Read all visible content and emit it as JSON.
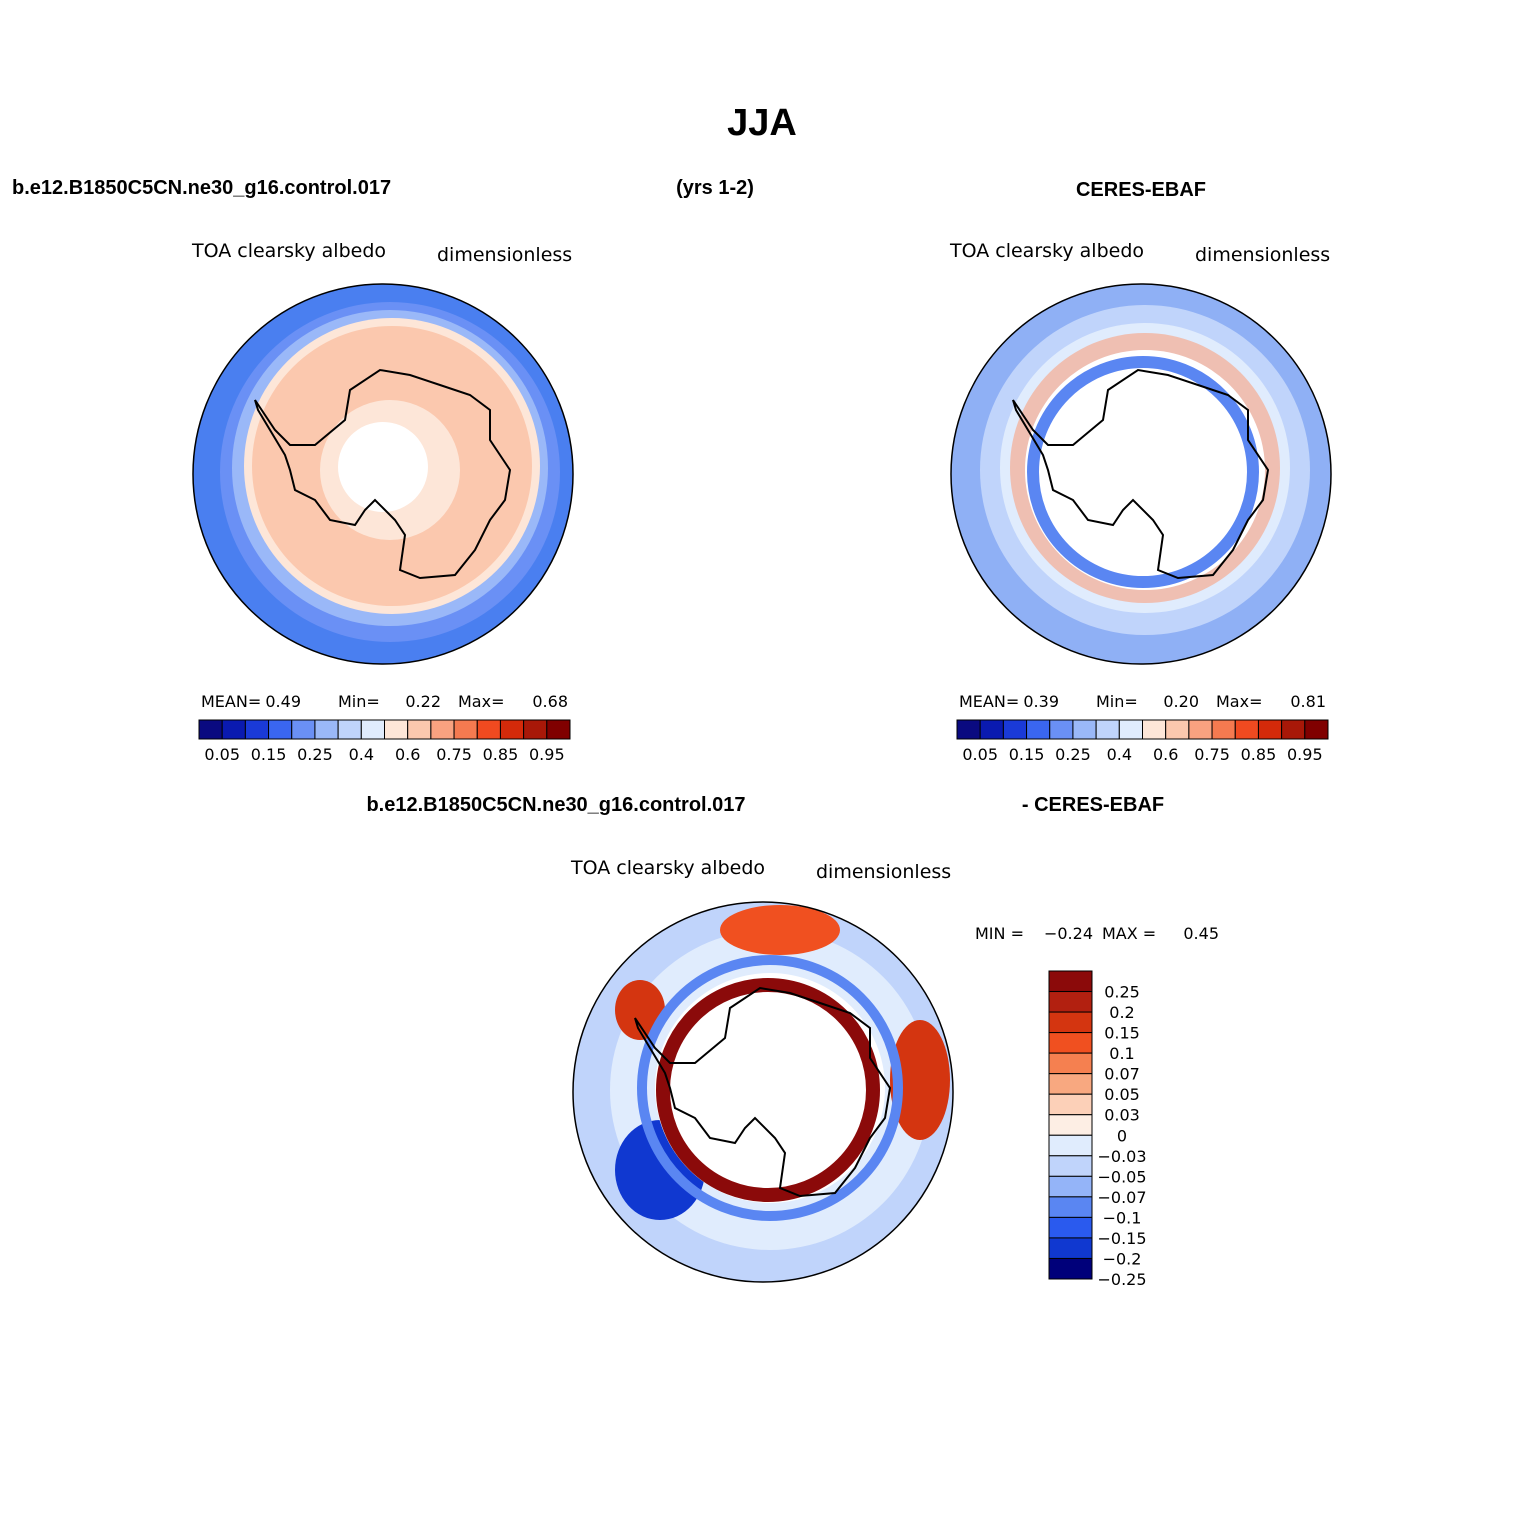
{
  "title": "JJA",
  "header": {
    "case": "b.e12.B1850C5CN.ne30_g16.control.017",
    "years": "(yrs 1-2)",
    "obs": "CERES-EBAF"
  },
  "panels": [
    {
      "variable": "TOA clearsky albedo",
      "units": "dimensionless",
      "stats": [
        {
          "label": "MEAN=",
          "value": "0.49"
        },
        {
          "label": "Min=",
          "value": "0.22"
        },
        {
          "label": "Max=",
          "value": "0.68"
        }
      ]
    },
    {
      "variable": "TOA clearsky albedo",
      "units": "dimensionless",
      "stats": [
        {
          "label": "MEAN=",
          "value": "0.39"
        },
        {
          "label": "Min=",
          "value": "0.20"
        },
        {
          "label": "Max=",
          "value": "0.81"
        }
      ]
    }
  ],
  "diff": {
    "case": "b.e12.B1850C5CN.ne30_g16.control.017",
    "obs": "- CERES-EBAF",
    "variable": "TOA clearsky albedo",
    "units": "dimensionless",
    "min_label": "MIN =",
    "min": "−0.24",
    "max_label": "MAX =",
    "max": "0.45"
  },
  "colorbar": {
    "colors": [
      "#0a0a80",
      "#0a1ab0",
      "#1a3ad8",
      "#3a66f0",
      "#6a90f5",
      "#9ab8f8",
      "#c0d4fb",
      "#e0ecfd",
      "#fde6d8",
      "#fbc8ae",
      "#f9a280",
      "#f57a50",
      "#f04a20",
      "#d42a0a",
      "#a81808",
      "#800000"
    ],
    "labels": [
      "0.05",
      "0.15",
      "0.25",
      "0.4",
      "0.6",
      "0.75",
      "0.85",
      "0.95"
    ]
  },
  "diff_colorbar": {
    "colors": [
      "#8b0a0a",
      "#b22010",
      "#d43510",
      "#f05020",
      "#f58050",
      "#f8a880",
      "#fcd0b8",
      "#fdeee4",
      "#e0ecfd",
      "#c0d4fb",
      "#94b4f8",
      "#5a86f2",
      "#2a5aee",
      "#1038d0",
      "#00007a"
    ],
    "labels": [
      "0.25",
      "0.2",
      "0.15",
      "0.1",
      "0.07",
      "0.05",
      "0.03",
      "0",
      "−0.03",
      "−0.05",
      "−0.07",
      "−0.1",
      "−0.15",
      "−0.2",
      "−0.25"
    ]
  }
}
